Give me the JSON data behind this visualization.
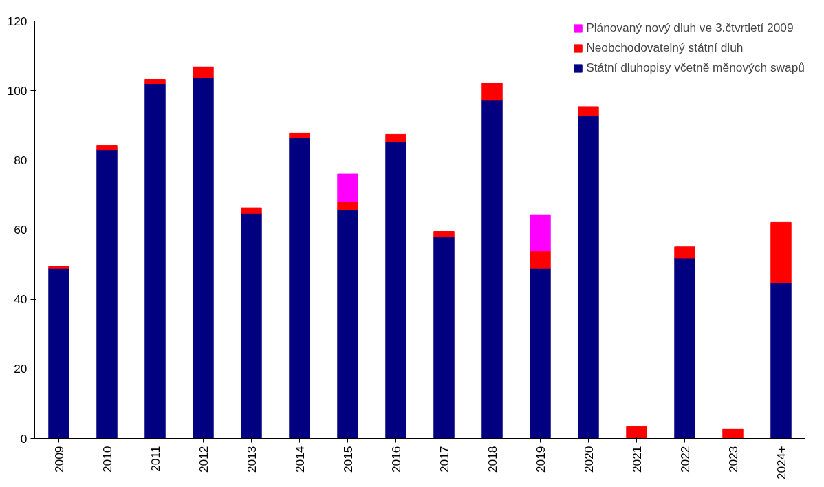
{
  "chart_data": {
    "type": "bar",
    "stacked": true,
    "categories": [
      "2009",
      "2010",
      "2011",
      "2012",
      "2013",
      "2014",
      "2015",
      "2016",
      "2017",
      "2018",
      "2019",
      "2020",
      "2021",
      "2022",
      "2023",
      "2024+"
    ],
    "series": [
      {
        "name": "Státní dluhopisy včetně měnových swapů",
        "color": "#000080",
        "values": [
          48.9,
          83.0,
          102.0,
          103.6,
          64.7,
          86.4,
          65.7,
          85.2,
          57.9,
          97.2,
          48.9,
          92.8,
          null,
          51.9,
          null,
          44.7
        ]
      },
      {
        "name": "Neobchodovatelný státní dluh",
        "color": "#ff0000",
        "values": [
          0.6,
          1.2,
          1.2,
          3.2,
          1.6,
          1.4,
          2.4,
          2.2,
          1.6,
          5.0,
          5.0,
          2.6,
          3.4,
          3.2,
          2.8,
          17.4
        ]
      },
      {
        "name": "Plánovaný nový dluh ve 3.čtvrtletí 2009",
        "color": "#ff00ff",
        "values": [
          null,
          null,
          null,
          null,
          null,
          null,
          7.9,
          null,
          null,
          null,
          10.4,
          null,
          null,
          null,
          null,
          null
        ]
      }
    ],
    "ylim": [
      0,
      120
    ],
    "yticks": [
      0,
      20,
      40,
      60,
      80,
      100,
      120
    ],
    "grid": false,
    "legend": "top right"
  }
}
